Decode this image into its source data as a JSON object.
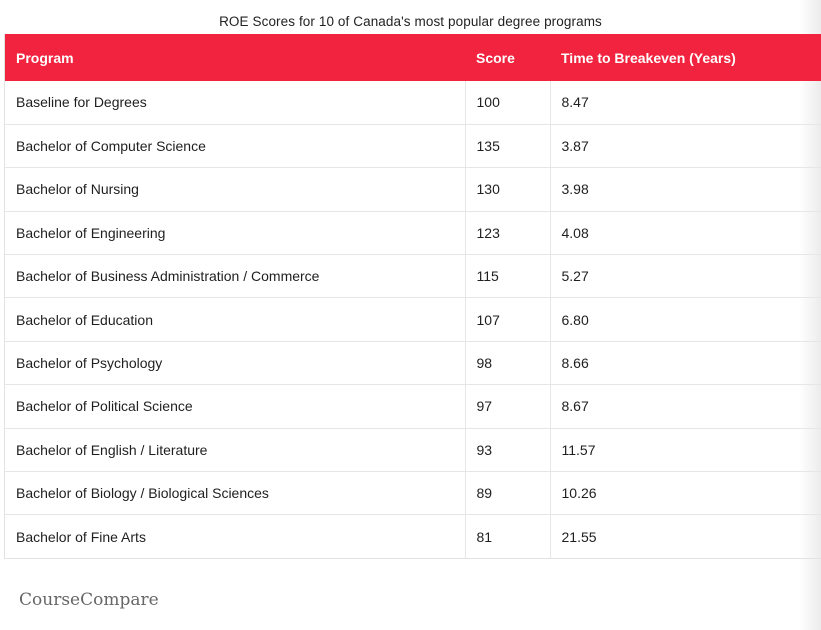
{
  "caption": "ROE Scores for 10 of Canada's most popular degree programs",
  "table": {
    "headers": [
      "Program",
      "Score",
      "Time to Breakeven (Years)"
    ],
    "rows": [
      [
        "Baseline for Degrees",
        "100",
        "8.47"
      ],
      [
        "Bachelor of Computer Science",
        "135",
        "3.87"
      ],
      [
        "Bachelor of Nursing",
        "130",
        "3.98"
      ],
      [
        "Bachelor of Engineering",
        "123",
        "4.08"
      ],
      [
        "Bachelor of Business Administration / Commerce",
        "115",
        "5.27"
      ],
      [
        "Bachelor of Education",
        "107",
        "6.80"
      ],
      [
        "Bachelor of Psychology",
        "98",
        "8.66"
      ],
      [
        "Bachelor of Political Science",
        "97",
        "8.67"
      ],
      [
        "Bachelor of English / Literature",
        "93",
        "11.57"
      ],
      [
        "Bachelor of Biology / Biological Sciences",
        "89",
        "10.26"
      ],
      [
        "Bachelor of Fine Arts",
        "81",
        "21.55"
      ]
    ]
  },
  "source": "CourseCompare",
  "colors": {
    "header_background": "#f2233e",
    "header_text": "#ffffff"
  }
}
